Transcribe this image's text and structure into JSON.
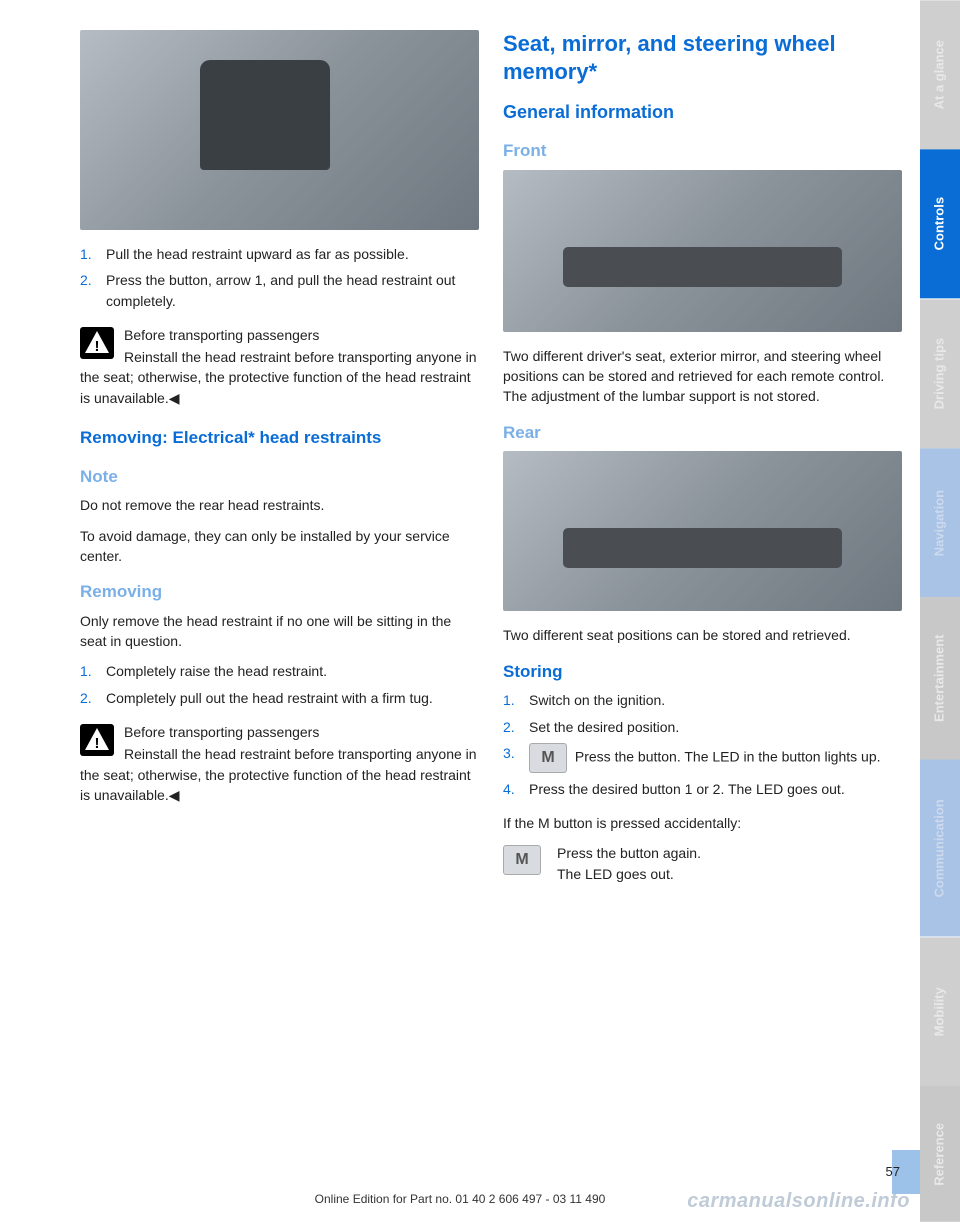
{
  "left": {
    "headrest_img_alt": "Head restraint removal illustration",
    "step1": "Pull the head restraint upward as far as possible.",
    "step2": "Press the button, arrow 1, and pull the head restraint out completely.",
    "warn1_title": "Before transporting passengers",
    "warn1_body": "Reinstall the head restraint before transporting anyone in the seat; otherwise, the protective function of the head restraint is unavailable.◀",
    "h3_removing": "Removing: Electrical* head restraints",
    "h3_note": "Note",
    "note_p1": "Do not remove the rear head restraints.",
    "note_p2": "To avoid damage, they can only be installed by your service center.",
    "h3_removing2": "Removing",
    "removing_p": "Only remove the head restraint if no one will be sitting in the seat in question.",
    "rstep1": "Completely raise the head restraint.",
    "rstep2": "Completely pull out the head restraint with a firm tug.",
    "warn2_title": "Before transporting passengers",
    "warn2_body": "Reinstall the head restraint before transporting anyone in the seat; otherwise, the protective function of the head restraint is unavailable.◀"
  },
  "right": {
    "h1": "Seat, mirror, and steering wheel memory*",
    "h2_general": "General information",
    "h3_front": "Front",
    "front_p": "Two different driver's seat, exterior mirror, and steering wheel positions can be stored and retrieved for each remote control. The adjustment of the lumbar support is not stored.",
    "h3_rear": "Rear",
    "rear_p": "Two different seat positions can be stored and retrieved.",
    "h3_storing": "Storing",
    "sstep1": "Switch on the ignition.",
    "sstep2": "Set the desired position.",
    "sstep3_icon": "M",
    "sstep3": " Press the button. The LED in the button lights up.",
    "sstep4": "Press the desired button 1 or 2. The LED goes out.",
    "acc_p": "If the M button is pressed accidentally:",
    "acc_icon": "M",
    "acc_l1": "Press the button again.",
    "acc_l2": "The LED goes out."
  },
  "sidebar": {
    "t1": "At a glance",
    "t2": "Controls",
    "t3": "Driving tips",
    "t4": "Navigation",
    "t5": "Entertainment",
    "t6": "Communication",
    "t7": "Mobility",
    "t8": "Reference"
  },
  "footer": {
    "pagenum": "57",
    "line": "Online Edition for Part no. 01 40 2 606 497 - 03 11 490",
    "watermark": "carmanualsonline.info"
  }
}
